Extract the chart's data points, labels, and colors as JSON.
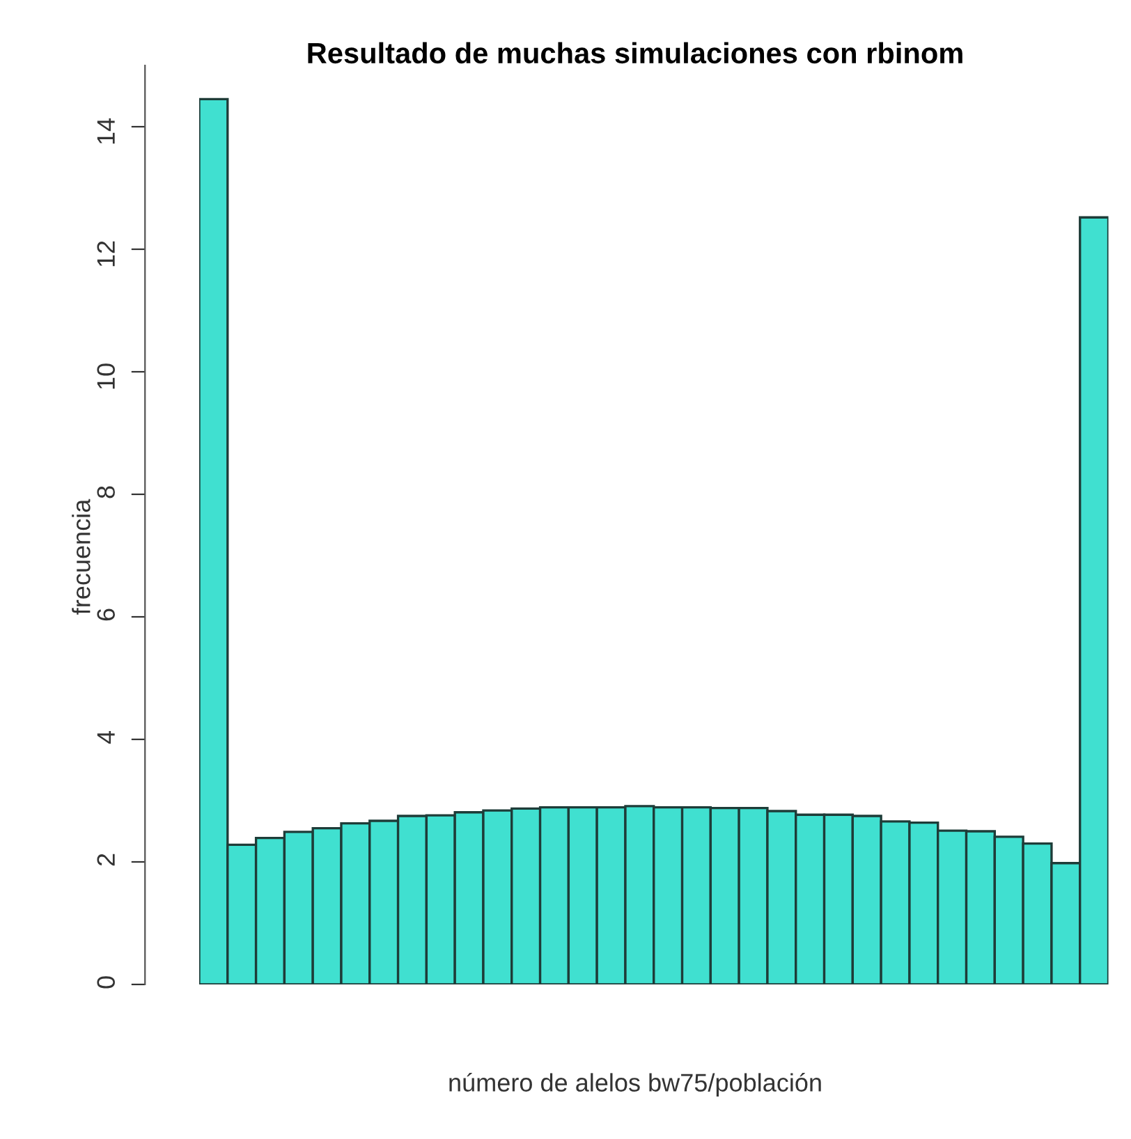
{
  "chart_data": {
    "type": "bar",
    "title": "Resultado de muchas simulaciones con rbinom",
    "xlabel": "número de alelos bw75/población",
    "ylabel": "frecuencia",
    "categories": [
      null,
      null,
      null,
      null,
      null,
      null,
      null,
      null,
      null,
      null,
      null,
      null,
      null,
      null,
      null,
      null,
      null,
      null,
      null,
      null,
      null,
      null,
      null,
      null,
      null,
      null,
      null,
      null,
      null,
      null,
      null,
      null
    ],
    "values": [
      14.45,
      2.28,
      2.39,
      2.49,
      2.55,
      2.63,
      2.67,
      2.75,
      2.76,
      2.81,
      2.84,
      2.87,
      2.89,
      2.89,
      2.89,
      2.91,
      2.89,
      2.89,
      2.88,
      2.88,
      2.83,
      2.77,
      2.77,
      2.75,
      2.66,
      2.64,
      2.51,
      2.5,
      2.41,
      2.3,
      1.98,
      12.52
    ],
    "color": "#40e0d0",
    "ylim": [
      0,
      15
    ],
    "yticks": [
      0,
      2,
      4,
      6,
      8,
      10,
      12,
      14
    ],
    "grid": false,
    "tick_labels": "y"
  }
}
